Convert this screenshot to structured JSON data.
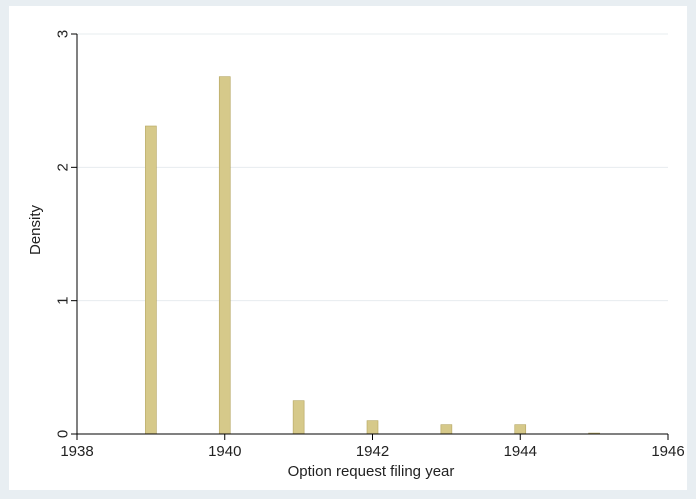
{
  "chart_data": {
    "type": "bar",
    "title": "",
    "xlabel": "Option request filing year",
    "ylabel": "Density",
    "x": [
      1939,
      1940,
      1941,
      1942,
      1943,
      1944,
      1945
    ],
    "values": [
      2.31,
      2.68,
      0.25,
      0.1,
      0.07,
      0.07,
      0.007
    ],
    "xlim": [
      1938,
      1946
    ],
    "ylim": [
      0,
      3
    ],
    "xticks": [
      1938,
      1940,
      1942,
      1944,
      1946
    ],
    "yticks": [
      0,
      1,
      2,
      3
    ],
    "grid": true,
    "colors": {
      "bar_fill": "#d6c98a",
      "bar_stroke": "#b3a45e",
      "background": "#e8eef2",
      "plot_background": "#ffffff",
      "grid": "#e7ecef",
      "axis": "#000000"
    }
  }
}
